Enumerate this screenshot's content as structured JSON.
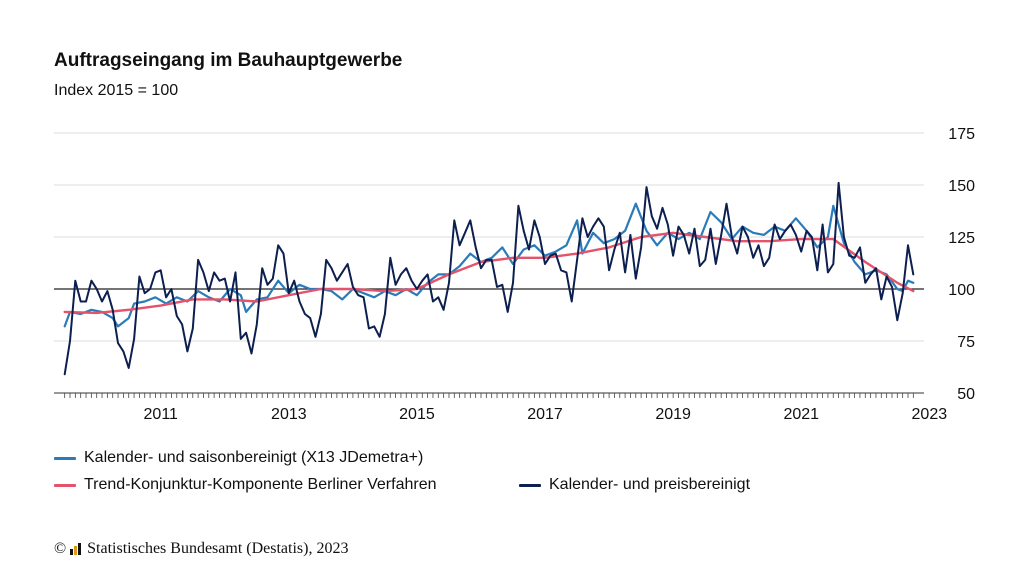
{
  "header": {
    "title": "Auftragseingang im Bauhauptgewerbe",
    "subtitle": "Index 2015 = 100"
  },
  "footer": {
    "copyright_symbol": "©",
    "source": "Statistisches Bundesamt (Destatis), 2023"
  },
  "colors": {
    "seasonal": "#2b7bb9",
    "trend": "#e5536b",
    "price": "#0c1f4f",
    "grid": "#dddddd",
    "baseline": "#222222"
  },
  "chart_data": {
    "type": "line",
    "title": "Auftragseingang im Bauhauptgewerbe",
    "subtitle": "Index 2015 = 100",
    "ylim": [
      50,
      175
    ],
    "yticks": [
      50,
      75,
      100,
      125,
      150,
      175
    ],
    "reference_line": 100,
    "y_axis_side": "right",
    "grid": true,
    "legend_position": "bottom",
    "xticks": [
      "2011",
      "2013",
      "2015",
      "2017",
      "2019",
      "2021",
      "2023"
    ],
    "x_start": "2010-01",
    "x_end": "2023-04",
    "series": [
      {
        "key": "seasonal",
        "name": "Kalender- und saisonbereinigt (X13 JDemetra+)",
        "color": "#2b7bb9",
        "points": [
          [
            "2010-01",
            82
          ],
          [
            "2010-02",
            89
          ],
          [
            "2010-04",
            88
          ],
          [
            "2010-06",
            90
          ],
          [
            "2010-08",
            89
          ],
          [
            "2010-10",
            86
          ],
          [
            "2010-11",
            82
          ],
          [
            "2011-01",
            86
          ],
          [
            "2011-02",
            93
          ],
          [
            "2011-04",
            94
          ],
          [
            "2011-06",
            96
          ],
          [
            "2011-08",
            93
          ],
          [
            "2011-10",
            96
          ],
          [
            "2011-12",
            94
          ],
          [
            "2012-02",
            99
          ],
          [
            "2012-04",
            96
          ],
          [
            "2012-06",
            94
          ],
          [
            "2012-08",
            100
          ],
          [
            "2012-10",
            97
          ],
          [
            "2012-11",
            89
          ],
          [
            "2013-01",
            95
          ],
          [
            "2013-03",
            96
          ],
          [
            "2013-05",
            104
          ],
          [
            "2013-07",
            98
          ],
          [
            "2013-09",
            102
          ],
          [
            "2013-11",
            100
          ],
          [
            "2014-01",
            100
          ],
          [
            "2014-03",
            99
          ],
          [
            "2014-05",
            95
          ],
          [
            "2014-07",
            100
          ],
          [
            "2014-09",
            98
          ],
          [
            "2014-11",
            96
          ],
          [
            "2015-01",
            99
          ],
          [
            "2015-03",
            97
          ],
          [
            "2015-05",
            100
          ],
          [
            "2015-07",
            97
          ],
          [
            "2015-09",
            103
          ],
          [
            "2015-11",
            107
          ],
          [
            "2016-01",
            107
          ],
          [
            "2016-03",
            111
          ],
          [
            "2016-05",
            117
          ],
          [
            "2016-07",
            113
          ],
          [
            "2016-09",
            115
          ],
          [
            "2016-11",
            120
          ],
          [
            "2017-01",
            112
          ],
          [
            "2017-03",
            119
          ],
          [
            "2017-05",
            121
          ],
          [
            "2017-07",
            116
          ],
          [
            "2017-09",
            118
          ],
          [
            "2017-11",
            121
          ],
          [
            "2018-01",
            133
          ],
          [
            "2018-02",
            117
          ],
          [
            "2018-04",
            127
          ],
          [
            "2018-06",
            122
          ],
          [
            "2018-08",
            124
          ],
          [
            "2018-10",
            128
          ],
          [
            "2018-12",
            141
          ],
          [
            "2019-02",
            128
          ],
          [
            "2019-04",
            121
          ],
          [
            "2019-06",
            127
          ],
          [
            "2019-08",
            124
          ],
          [
            "2019-10",
            127
          ],
          [
            "2019-12",
            124
          ],
          [
            "2020-02",
            137
          ],
          [
            "2020-04",
            132
          ],
          [
            "2020-06",
            124
          ],
          [
            "2020-08",
            130
          ],
          [
            "2020-10",
            127
          ],
          [
            "2020-12",
            126
          ],
          [
            "2021-02",
            130
          ],
          [
            "2021-04",
            128
          ],
          [
            "2021-06",
            134
          ],
          [
            "2021-08",
            128
          ],
          [
            "2021-10",
            120
          ],
          [
            "2021-12",
            125
          ],
          [
            "2022-01",
            140
          ],
          [
            "2022-03",
            122
          ],
          [
            "2022-05",
            113
          ],
          [
            "2022-07",
            107
          ],
          [
            "2022-09",
            109
          ],
          [
            "2022-11",
            107
          ],
          [
            "2023-01",
            100
          ],
          [
            "2023-02",
            99
          ],
          [
            "2023-03",
            104
          ],
          [
            "2023-04",
            103
          ]
        ]
      },
      {
        "key": "trend",
        "name": "Trend-Konjunktur-Komponente Berliner Verfahren",
        "color": "#e5536b",
        "points": [
          [
            "2010-01",
            89
          ],
          [
            "2010-07",
            88.5
          ],
          [
            "2011-01",
            90
          ],
          [
            "2011-07",
            92
          ],
          [
            "2012-01",
            95
          ],
          [
            "2012-07",
            95
          ],
          [
            "2013-01",
            94
          ],
          [
            "2013-07",
            97
          ],
          [
            "2014-01",
            100
          ],
          [
            "2014-07",
            100
          ],
          [
            "2015-01",
            99
          ],
          [
            "2015-07",
            100
          ],
          [
            "2016-01",
            107
          ],
          [
            "2016-07",
            113
          ],
          [
            "2017-01",
            115
          ],
          [
            "2017-07",
            115
          ],
          [
            "2018-01",
            117
          ],
          [
            "2018-07",
            120
          ],
          [
            "2019-01",
            125
          ],
          [
            "2019-07",
            127
          ],
          [
            "2020-01",
            125
          ],
          [
            "2020-07",
            123
          ],
          [
            "2021-01",
            123
          ],
          [
            "2021-07",
            124
          ],
          [
            "2022-01",
            124
          ],
          [
            "2022-07",
            113
          ],
          [
            "2023-01",
            103
          ],
          [
            "2023-04",
            99
          ]
        ]
      },
      {
        "key": "price",
        "name": "Kalender- und preisbereinigt",
        "color": "#0c1f4f",
        "points": [
          [
            "2010-01",
            59
          ],
          [
            "2010-02",
            75
          ],
          [
            "2010-03",
            104
          ],
          [
            "2010-04",
            94
          ],
          [
            "2010-05",
            94
          ],
          [
            "2010-06",
            104
          ],
          [
            "2010-07",
            100
          ],
          [
            "2010-08",
            94
          ],
          [
            "2010-09",
            99
          ],
          [
            "2010-10",
            90
          ],
          [
            "2010-11",
            74
          ],
          [
            "2010-12",
            70
          ],
          [
            "2011-01",
            62
          ],
          [
            "2011-02",
            76
          ],
          [
            "2011-03",
            106
          ],
          [
            "2011-04",
            98
          ],
          [
            "2011-05",
            100
          ],
          [
            "2011-06",
            108
          ],
          [
            "2011-07",
            109
          ],
          [
            "2011-08",
            96
          ],
          [
            "2011-09",
            100
          ],
          [
            "2011-10",
            87
          ],
          [
            "2011-11",
            83
          ],
          [
            "2011-12",
            70
          ],
          [
            "2012-01",
            81
          ],
          [
            "2012-02",
            114
          ],
          [
            "2012-03",
            108
          ],
          [
            "2012-04",
            99
          ],
          [
            "2012-05",
            108
          ],
          [
            "2012-06",
            104
          ],
          [
            "2012-07",
            105
          ],
          [
            "2012-08",
            94
          ],
          [
            "2012-09",
            108
          ],
          [
            "2012-10",
            76
          ],
          [
            "2012-11",
            79
          ],
          [
            "2012-12",
            69
          ],
          [
            "2013-01",
            83
          ],
          [
            "2013-02",
            110
          ],
          [
            "2013-03",
            102
          ],
          [
            "2013-04",
            105
          ],
          [
            "2013-05",
            121
          ],
          [
            "2013-06",
            117
          ],
          [
            "2013-07",
            98
          ],
          [
            "2013-08",
            104
          ],
          [
            "2013-09",
            94
          ],
          [
            "2013-10",
            88
          ],
          [
            "2013-11",
            86
          ],
          [
            "2013-12",
            77
          ],
          [
            "2014-01",
            88
          ],
          [
            "2014-02",
            114
          ],
          [
            "2014-03",
            110
          ],
          [
            "2014-04",
            104
          ],
          [
            "2014-05",
            108
          ],
          [
            "2014-06",
            112
          ],
          [
            "2014-07",
            101
          ],
          [
            "2014-08",
            97
          ],
          [
            "2014-09",
            96
          ],
          [
            "2014-10",
            81
          ],
          [
            "2014-11",
            82
          ],
          [
            "2014-12",
            77
          ],
          [
            "2015-01",
            88
          ],
          [
            "2015-02",
            115
          ],
          [
            "2015-03",
            102
          ],
          [
            "2015-04",
            107
          ],
          [
            "2015-05",
            110
          ],
          [
            "2015-06",
            104
          ],
          [
            "2015-07",
            100
          ],
          [
            "2015-08",
            104
          ],
          [
            "2015-09",
            107
          ],
          [
            "2015-10",
            94
          ],
          [
            "2015-11",
            96
          ],
          [
            "2015-12",
            90
          ],
          [
            "2016-01",
            103
          ],
          [
            "2016-02",
            133
          ],
          [
            "2016-03",
            121
          ],
          [
            "2016-04",
            127
          ],
          [
            "2016-05",
            133
          ],
          [
            "2016-06",
            120
          ],
          [
            "2016-07",
            110
          ],
          [
            "2016-08",
            114
          ],
          [
            "2016-09",
            114
          ],
          [
            "2016-10",
            101
          ],
          [
            "2016-11",
            102
          ],
          [
            "2016-12",
            89
          ],
          [
            "2017-01",
            103
          ],
          [
            "2017-02",
            140
          ],
          [
            "2017-03",
            128
          ],
          [
            "2017-04",
            119
          ],
          [
            "2017-05",
            133
          ],
          [
            "2017-06",
            125
          ],
          [
            "2017-07",
            112
          ],
          [
            "2017-08",
            116
          ],
          [
            "2017-09",
            117
          ],
          [
            "2017-10",
            109
          ],
          [
            "2017-11",
            108
          ],
          [
            "2017-12",
            94
          ],
          [
            "2018-01",
            114
          ],
          [
            "2018-02",
            134
          ],
          [
            "2018-03",
            125
          ],
          [
            "2018-04",
            130
          ],
          [
            "2018-05",
            134
          ],
          [
            "2018-06",
            130
          ],
          [
            "2018-07",
            109
          ],
          [
            "2018-08",
            119
          ],
          [
            "2018-09",
            127
          ],
          [
            "2018-10",
            108
          ],
          [
            "2018-11",
            126
          ],
          [
            "2018-12",
            105
          ],
          [
            "2019-01",
            120
          ],
          [
            "2019-02",
            149
          ],
          [
            "2019-03",
            135
          ],
          [
            "2019-04",
            129
          ],
          [
            "2019-05",
            139
          ],
          [
            "2019-06",
            131
          ],
          [
            "2019-07",
            116
          ],
          [
            "2019-08",
            130
          ],
          [
            "2019-09",
            126
          ],
          [
            "2019-10",
            117
          ],
          [
            "2019-11",
            129
          ],
          [
            "2019-12",
            111
          ],
          [
            "2020-01",
            114
          ],
          [
            "2020-02",
            129
          ],
          [
            "2020-03",
            112
          ],
          [
            "2020-04",
            126
          ],
          [
            "2020-05",
            141
          ],
          [
            "2020-06",
            125
          ],
          [
            "2020-07",
            117
          ],
          [
            "2020-08",
            130
          ],
          [
            "2020-09",
            125
          ],
          [
            "2020-10",
            115
          ],
          [
            "2020-11",
            121
          ],
          [
            "2020-12",
            111
          ],
          [
            "2021-01",
            115
          ],
          [
            "2021-02",
            131
          ],
          [
            "2021-03",
            124
          ],
          [
            "2021-04",
            128
          ],
          [
            "2021-05",
            131
          ],
          [
            "2021-06",
            126
          ],
          [
            "2021-07",
            118
          ],
          [
            "2021-08",
            128
          ],
          [
            "2021-09",
            125
          ],
          [
            "2021-10",
            109
          ],
          [
            "2021-11",
            131
          ],
          [
            "2021-12",
            108
          ],
          [
            "2022-01",
            112
          ],
          [
            "2022-02",
            151
          ],
          [
            "2022-03",
            125
          ],
          [
            "2022-04",
            116
          ],
          [
            "2022-05",
            115
          ],
          [
            "2022-06",
            120
          ],
          [
            "2022-07",
            103
          ],
          [
            "2022-08",
            107
          ],
          [
            "2022-09",
            110
          ],
          [
            "2022-10",
            95
          ],
          [
            "2022-11",
            106
          ],
          [
            "2022-12",
            101
          ],
          [
            "2023-01",
            85
          ],
          [
            "2023-02",
            98
          ],
          [
            "2023-03",
            121
          ],
          [
            "2023-04",
            107
          ]
        ]
      }
    ]
  }
}
